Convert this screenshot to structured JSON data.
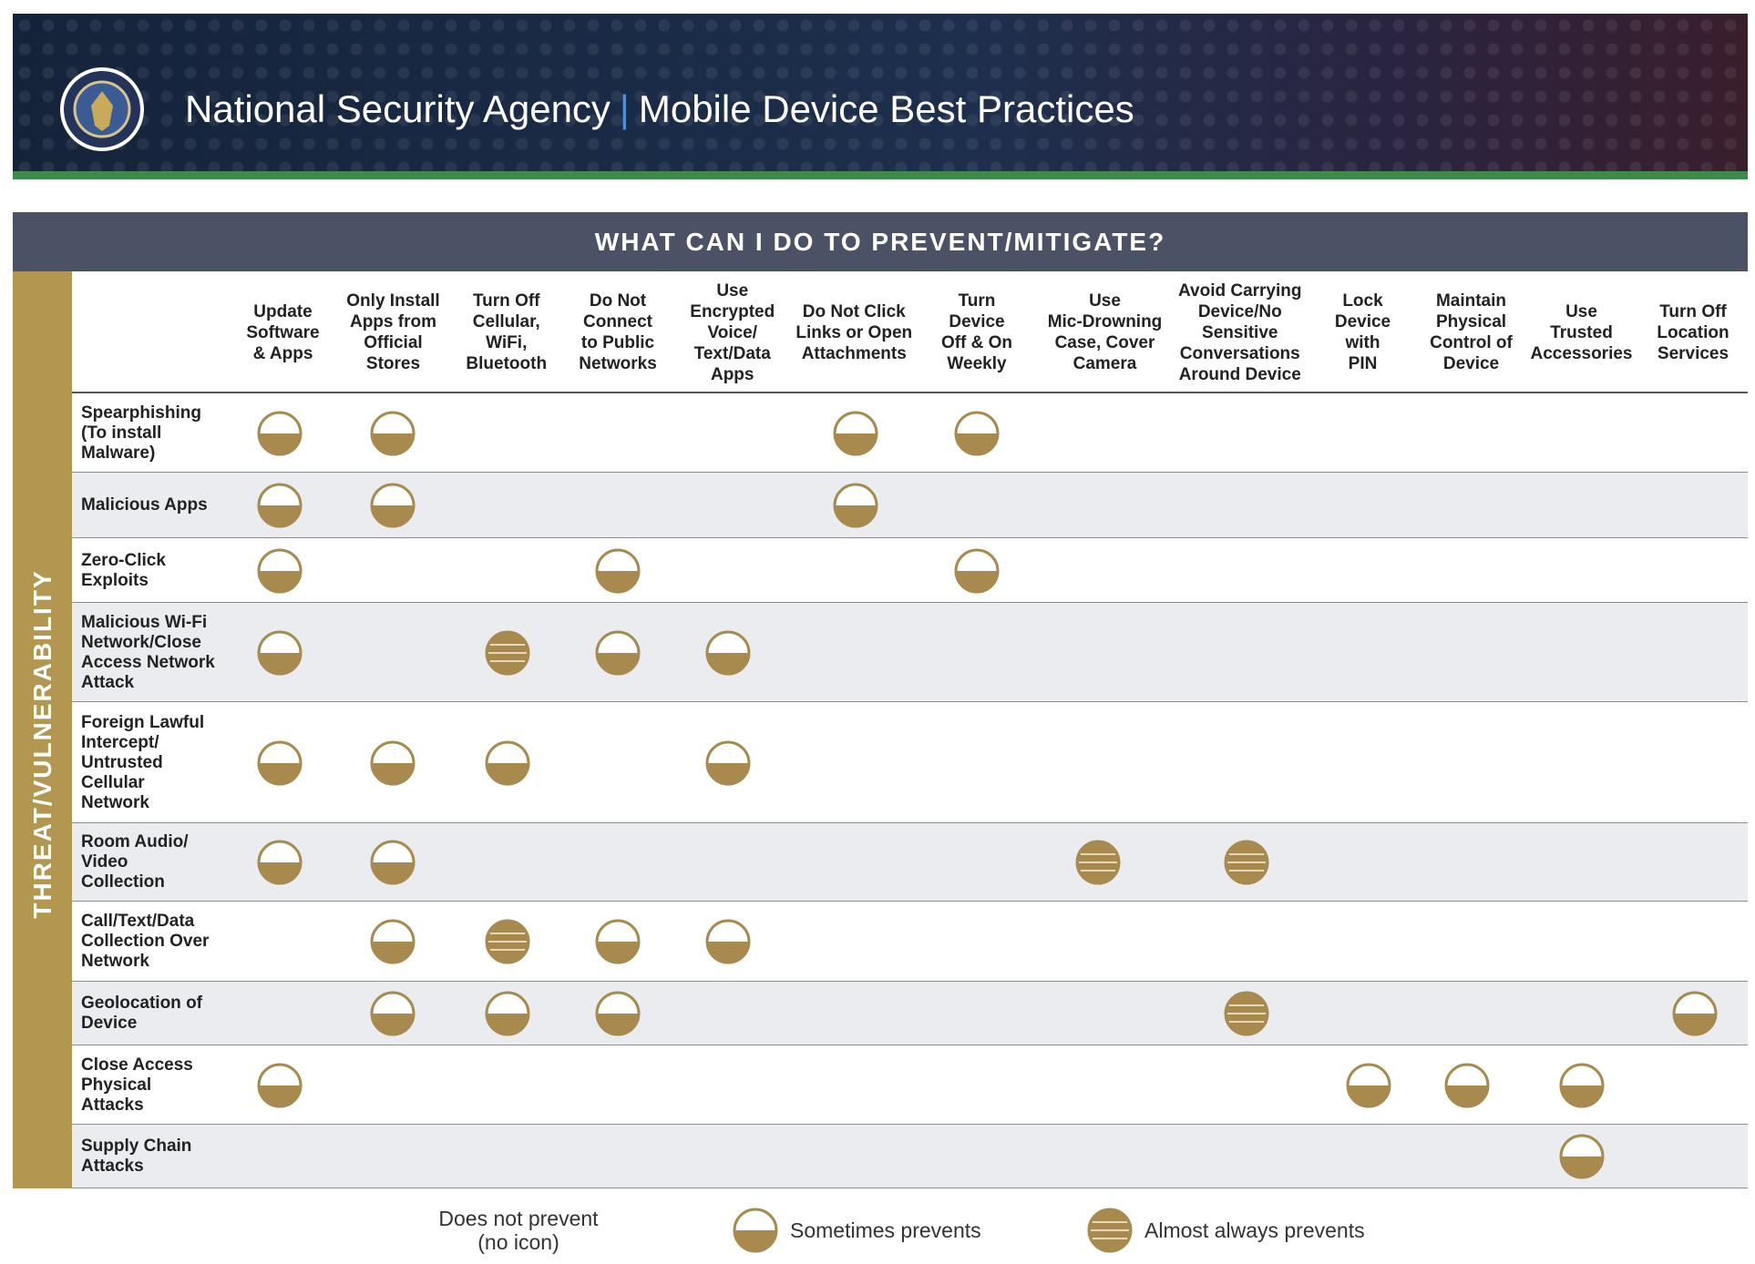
{
  "header": {
    "title": "National Security Agency",
    "separator": "|",
    "subtitle": "Mobile Device Best Practices"
  },
  "table": {
    "title": "WHAT CAN I DO TO PREVENT/MITIGATE?",
    "side_label": "THREAT/VULNERABILITY",
    "columns": [
      "Update\nSoftware\n& Apps",
      "Only Install\nApps from\nOfficial\nStores",
      "Turn Off\nCellular,\nWiFi,\nBluetooth",
      "Do Not\nConnect\nto Public\nNetworks",
      "Use\nEncrypted\nVoice/\nText/Data\nApps",
      "Do Not Click\nLinks or Open\nAttachments",
      "Turn\nDevice\nOff & On\nWeekly",
      "Use\nMic-Drowning\nCase, Cover\nCamera",
      "Avoid Carrying\nDevice/No\nSensitive\nConversations\nAround Device",
      "Lock\nDevice\nwith\nPIN",
      "Maintain\nPhysical\nControl of\nDevice",
      "Use\nTrusted\nAccessories",
      "Turn Off\nLocation\nServices"
    ],
    "rows": [
      {
        "label": "Spearphishing\n(To install\nMalware)",
        "cells": [
          1,
          1,
          0,
          0,
          0,
          1,
          1,
          0,
          0,
          0,
          0,
          0,
          0
        ]
      },
      {
        "label": "Malicious Apps",
        "cells": [
          1,
          1,
          0,
          0,
          0,
          1,
          0,
          0,
          0,
          0,
          0,
          0,
          0
        ]
      },
      {
        "label": "Zero-Click\nExploits",
        "cells": [
          1,
          0,
          0,
          1,
          0,
          0,
          1,
          0,
          0,
          0,
          0,
          0,
          0
        ]
      },
      {
        "label": "Malicious Wi-Fi\nNetwork/Close\nAccess Network\nAttack",
        "cells": [
          1,
          0,
          2,
          1,
          1,
          0,
          0,
          0,
          0,
          0,
          0,
          0,
          0
        ]
      },
      {
        "label": "Foreign Lawful\nIntercept/\nUntrusted\nCellular\nNetwork",
        "cells": [
          1,
          1,
          1,
          0,
          1,
          0,
          0,
          0,
          0,
          0,
          0,
          0,
          0
        ]
      },
      {
        "label": "Room Audio/\nVideo\nCollection",
        "cells": [
          1,
          1,
          0,
          0,
          0,
          0,
          0,
          2,
          2,
          0,
          0,
          0,
          0
        ]
      },
      {
        "label": "Call/Text/Data\nCollection Over\nNetwork",
        "cells": [
          0,
          1,
          2,
          1,
          1,
          0,
          0,
          0,
          0,
          0,
          0,
          0,
          0
        ]
      },
      {
        "label": "Geolocation of\nDevice",
        "cells": [
          0,
          1,
          1,
          1,
          0,
          0,
          0,
          0,
          2,
          0,
          0,
          0,
          1
        ]
      },
      {
        "label": "Close Access\nPhysical\nAttacks",
        "cells": [
          1,
          0,
          0,
          0,
          0,
          0,
          0,
          0,
          0,
          1,
          1,
          1,
          0
        ]
      },
      {
        "label": "Supply Chain\nAttacks",
        "cells": [
          0,
          0,
          0,
          0,
          0,
          0,
          0,
          0,
          0,
          0,
          0,
          1,
          0
        ]
      }
    ]
  },
  "legend": {
    "items": [
      {
        "label": "Does not prevent\n(no icon)"
      },
      {
        "label": "Sometimes prevents"
      },
      {
        "label": "Almost always prevents"
      }
    ]
  }
}
